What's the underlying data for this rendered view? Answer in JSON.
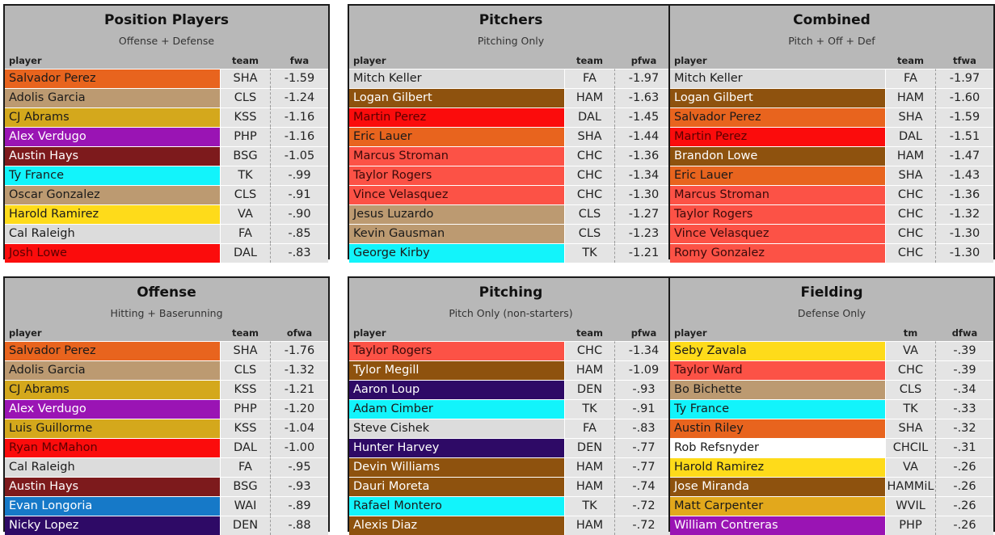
{
  "panels": [
    {
      "title": "Position Players",
      "subtitle": "Offense + Defense",
      "headers": [
        "player",
        "team",
        "fwa"
      ],
      "rows": [
        {
          "name": "Salvador Perez",
          "team": "SHA",
          "val": "-1.59",
          "bg": "#e8641e",
          "fg": "#1a1a1a"
        },
        {
          "name": "Adolis Garcia",
          "team": "CLS",
          "val": "-1.24",
          "bg": "#bc9a71",
          "fg": "#1a1a1a"
        },
        {
          "name": "CJ Abrams",
          "team": "KSS",
          "val": "-1.16",
          "bg": "#d4a81c",
          "fg": "#1a1a1a"
        },
        {
          "name": "Alex Verdugo",
          "team": "PHP",
          "val": "-1.16",
          "bg": "#9a14b4",
          "fg": "#ffffff"
        },
        {
          "name": "Austin Hays",
          "team": "BSG",
          "val": "-1.05",
          "bg": "#7d1a1c",
          "fg": "#ffffff"
        },
        {
          "name": "Ty France",
          "team": "TK",
          "val": "-.99",
          "bg": "#12f4fb",
          "fg": "#1a1a1a"
        },
        {
          "name": "Oscar Gonzalez",
          "team": "CLS",
          "val": "-.91",
          "bg": "#bc9a71",
          "fg": "#1a1a1a"
        },
        {
          "name": "Harold Ramirez",
          "team": "VA",
          "val": "-.90",
          "bg": "#fedb1a",
          "fg": "#1a1a1a"
        },
        {
          "name": "Cal Raleigh",
          "team": "FA",
          "val": "-.85",
          "bg": "#dcdcdc",
          "fg": "#1a1a1a"
        },
        {
          "name": "Josh Lowe",
          "team": "DAL",
          "val": "-.83",
          "bg": "#fb0c0c",
          "fg": "#5a0000"
        }
      ]
    },
    {
      "title": "Pitchers",
      "subtitle": "Pitching Only",
      "headers": [
        "player",
        "team",
        "pfwa"
      ],
      "rows": [
        {
          "name": "Mitch Keller",
          "team": "FA",
          "val": "-1.97",
          "bg": "#dcdcdc",
          "fg": "#1a1a1a"
        },
        {
          "name": "Logan Gilbert",
          "team": "HAM",
          "val": "-1.63",
          "bg": "#8e520e",
          "fg": "#ffffff"
        },
        {
          "name": "Martin Perez",
          "team": "DAL",
          "val": "-1.45",
          "bg": "#fb0c0c",
          "fg": "#5a0000"
        },
        {
          "name": "Eric Lauer",
          "team": "SHA",
          "val": "-1.44",
          "bg": "#e8641e",
          "fg": "#1a1a1a"
        },
        {
          "name": "Marcus Stroman",
          "team": "CHC",
          "val": "-1.36",
          "bg": "#fc5246",
          "fg": "#3a0a0a"
        },
        {
          "name": "Taylor Rogers",
          "team": "CHC",
          "val": "-1.34",
          "bg": "#fc5246",
          "fg": "#3a0a0a"
        },
        {
          "name": "Vince Velasquez",
          "team": "CHC",
          "val": "-1.30",
          "bg": "#fc5246",
          "fg": "#3a0a0a"
        },
        {
          "name": "Jesus Luzardo",
          "team": "CLS",
          "val": "-1.27",
          "bg": "#bc9a71",
          "fg": "#1a1a1a"
        },
        {
          "name": "Kevin Gausman",
          "team": "CLS",
          "val": "-1.23",
          "bg": "#bc9a71",
          "fg": "#1a1a1a"
        },
        {
          "name": "George Kirby",
          "team": "TK",
          "val": "-1.21",
          "bg": "#12f4fb",
          "fg": "#1a1a1a"
        }
      ]
    },
    {
      "title": "Combined",
      "subtitle": "Pitch + Off + Def",
      "headers": [
        "player",
        "team",
        "tfwa"
      ],
      "rows": [
        {
          "name": "Mitch Keller",
          "team": "FA",
          "val": "-1.97",
          "bg": "#dcdcdc",
          "fg": "#1a1a1a"
        },
        {
          "name": "Logan Gilbert",
          "team": "HAM",
          "val": "-1.60",
          "bg": "#8e520e",
          "fg": "#ffffff"
        },
        {
          "name": "Salvador Perez",
          "team": "SHA",
          "val": "-1.59",
          "bg": "#e8641e",
          "fg": "#1a1a1a"
        },
        {
          "name": "Martin Perez",
          "team": "DAL",
          "val": "-1.51",
          "bg": "#fb0c0c",
          "fg": "#5a0000"
        },
        {
          "name": "Brandon Lowe",
          "team": "HAM",
          "val": "-1.47",
          "bg": "#8e520e",
          "fg": "#ffffff"
        },
        {
          "name": "Eric Lauer",
          "team": "SHA",
          "val": "-1.43",
          "bg": "#e8641e",
          "fg": "#1a1a1a"
        },
        {
          "name": "Marcus Stroman",
          "team": "CHC",
          "val": "-1.36",
          "bg": "#fc5246",
          "fg": "#3a0a0a"
        },
        {
          "name": "Taylor Rogers",
          "team": "CHC",
          "val": "-1.32",
          "bg": "#fc5246",
          "fg": "#3a0a0a"
        },
        {
          "name": "Vince Velasquez",
          "team": "CHC",
          "val": "-1.30",
          "bg": "#fc5246",
          "fg": "#3a0a0a"
        },
        {
          "name": "Romy Gonzalez",
          "team": "CHC",
          "val": "-1.30",
          "bg": "#fc5246",
          "fg": "#3a0a0a"
        }
      ]
    },
    {
      "title": "Offense",
      "subtitle": "Hitting + Baserunning",
      "headers": [
        "player",
        "team",
        "ofwa"
      ],
      "rows": [
        {
          "name": "Salvador Perez",
          "team": "SHA",
          "val": "-1.76",
          "bg": "#e8641e",
          "fg": "#1a1a1a"
        },
        {
          "name": "Adolis Garcia",
          "team": "CLS",
          "val": "-1.32",
          "bg": "#bc9a71",
          "fg": "#1a1a1a"
        },
        {
          "name": "CJ Abrams",
          "team": "KSS",
          "val": "-1.21",
          "bg": "#d4a81c",
          "fg": "#1a1a1a"
        },
        {
          "name": "Alex Verdugo",
          "team": "PHP",
          "val": "-1.20",
          "bg": "#9a14b4",
          "fg": "#ffffff"
        },
        {
          "name": "Luis Guillorme",
          "team": "KSS",
          "val": "-1.04",
          "bg": "#d4a81c",
          "fg": "#1a1a1a"
        },
        {
          "name": "Ryan McMahon",
          "team": "DAL",
          "val": "-1.00",
          "bg": "#fb0c0c",
          "fg": "#5a0000"
        },
        {
          "name": "Cal Raleigh",
          "team": "FA",
          "val": "-.95",
          "bg": "#dcdcdc",
          "fg": "#1a1a1a"
        },
        {
          "name": "Austin Hays",
          "team": "BSG",
          "val": "-.93",
          "bg": "#7d1a1c",
          "fg": "#ffffff"
        },
        {
          "name": "Evan Longoria",
          "team": "WAI",
          "val": "-.89",
          "bg": "#1679c8",
          "fg": "#ffffff"
        },
        {
          "name": "Nicky Lopez",
          "team": "DEN",
          "val": "-.88",
          "bg": "#2e0a66",
          "fg": "#ffffff"
        }
      ]
    },
    {
      "title": "Pitching",
      "subtitle": "Pitch Only (non-starters)",
      "headers": [
        "player",
        "team",
        "pfwa"
      ],
      "rows": [
        {
          "name": "Taylor Rogers",
          "team": "CHC",
          "val": "-1.34",
          "bg": "#fc5246",
          "fg": "#3a0a0a"
        },
        {
          "name": "Tylor Megill",
          "team": "HAM",
          "val": "-1.09",
          "bg": "#8e520e",
          "fg": "#ffffff"
        },
        {
          "name": "Aaron Loup",
          "team": "DEN",
          "val": "-.93",
          "bg": "#2e0a66",
          "fg": "#ffffff"
        },
        {
          "name": "Adam Cimber",
          "team": "TK",
          "val": "-.91",
          "bg": "#12f4fb",
          "fg": "#1a1a1a"
        },
        {
          "name": "Steve Cishek",
          "team": "FA",
          "val": "-.83",
          "bg": "#dcdcdc",
          "fg": "#1a1a1a"
        },
        {
          "name": "Hunter Harvey",
          "team": "DEN",
          "val": "-.77",
          "bg": "#2e0a66",
          "fg": "#ffffff"
        },
        {
          "name": "Devin Williams",
          "team": "HAM",
          "val": "-.77",
          "bg": "#8e520e",
          "fg": "#ffffff"
        },
        {
          "name": "Dauri Moreta",
          "team": "HAM",
          "val": "-.74",
          "bg": "#8e520e",
          "fg": "#ffffff"
        },
        {
          "name": "Rafael Montero",
          "team": "TK",
          "val": "-.72",
          "bg": "#12f4fb",
          "fg": "#1a1a1a"
        },
        {
          "name": "Alexis Diaz",
          "team": "HAM",
          "val": "-.72",
          "bg": "#8e520e",
          "fg": "#ffffff"
        }
      ]
    },
    {
      "title": "Fielding",
      "subtitle": "Defense Only",
      "headers": [
        "player",
        "tm",
        "dfwa"
      ],
      "rows": [
        {
          "name": "Seby Zavala",
          "team": "VA",
          "val": "-.39",
          "bg": "#fedb1a",
          "fg": "#1a1a1a"
        },
        {
          "name": "Taylor Ward",
          "team": "CHC",
          "val": "-.39",
          "bg": "#fc5246",
          "fg": "#3a0a0a"
        },
        {
          "name": "Bo Bichette",
          "team": "CLS",
          "val": "-.34",
          "bg": "#bc9a71",
          "fg": "#1a1a1a"
        },
        {
          "name": "Ty France",
          "team": "TK",
          "val": "-.33",
          "bg": "#12f4fb",
          "fg": "#1a1a1a"
        },
        {
          "name": "Austin Riley",
          "team": "SHA",
          "val": "-.32",
          "bg": "#e8641e",
          "fg": "#1a1a1a"
        },
        {
          "name": "Rob Refsnyder",
          "team": "CHCIL",
          "val": "-.31",
          "bg": "#ffffff",
          "fg": "#1a1a1a"
        },
        {
          "name": "Harold Ramirez",
          "team": "VA",
          "val": "-.26",
          "bg": "#fedb1a",
          "fg": "#1a1a1a"
        },
        {
          "name": "Jose Miranda",
          "team": "HAMMiL",
          "val": "-.26",
          "bg": "#8e520e",
          "fg": "#ffffff"
        },
        {
          "name": "Matt Carpenter",
          "team": "WVIL",
          "val": "-.26",
          "bg": "#e2a81c",
          "fg": "#1a1a1a"
        },
        {
          "name": "William Contreras",
          "team": "PHP",
          "val": "-.26",
          "bg": "#9a14b4",
          "fg": "#ffffff"
        }
      ]
    }
  ]
}
